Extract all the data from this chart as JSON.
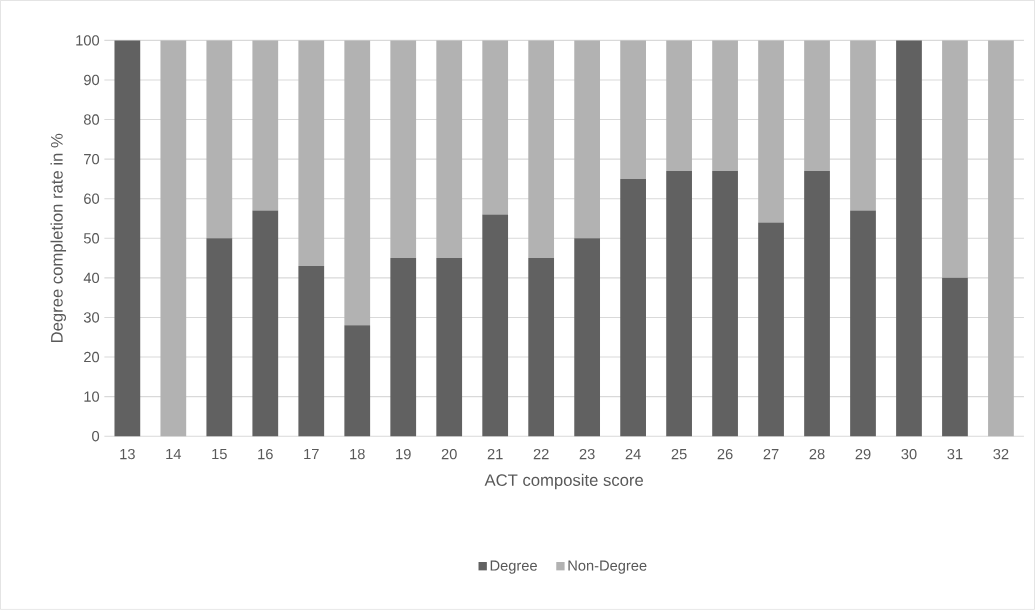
{
  "chart_data": {
    "type": "bar",
    "stacked": true,
    "xlabel": "ACT composite score",
    "ylabel": "Degree completion rate in %",
    "categories": [
      "13",
      "14",
      "15",
      "16",
      "17",
      "18",
      "19",
      "20",
      "21",
      "22",
      "23",
      "24",
      "25",
      "26",
      "27",
      "28",
      "29",
      "30",
      "31",
      "32"
    ],
    "series": [
      {
        "name": "Degree",
        "color": "#616161",
        "values": [
          100,
          0,
          50,
          57,
          43,
          28,
          45,
          45,
          56,
          45,
          50,
          65,
          67,
          67,
          54,
          67,
          57,
          100,
          40,
          0
        ]
      },
      {
        "name": "Non-Degree",
        "color": "#b2b2b2",
        "values": [
          0,
          100,
          50,
          43,
          57,
          72,
          55,
          55,
          44,
          55,
          50,
          35,
          33,
          33,
          46,
          33,
          43,
          0,
          60,
          100
        ]
      }
    ],
    "ylim": [
      0,
      100
    ],
    "yticks": [
      0,
      10,
      20,
      30,
      40,
      50,
      60,
      70,
      80,
      90,
      100
    ],
    "grid": "y",
    "legend": "bottom"
  }
}
